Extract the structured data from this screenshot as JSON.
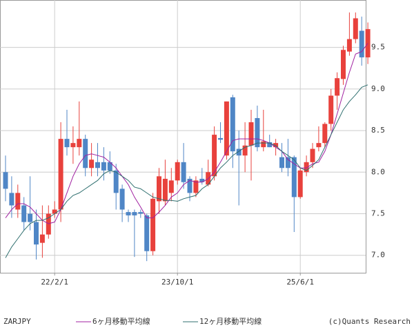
{
  "chart_data": {
    "type": "candlestick",
    "symbol": "ZARJPY",
    "credit": "(c)Quants Research",
    "categories": [
      null,
      null,
      null,
      null,
      null,
      null,
      null,
      null,
      "22/2/1",
      null,
      null,
      null,
      null,
      null,
      null,
      null,
      null,
      null,
      null,
      null,
      null,
      null,
      null,
      null,
      null,
      null,
      null,
      null,
      "23/10/1",
      null,
      null,
      null,
      null,
      null,
      null,
      null,
      null,
      null,
      null,
      null,
      null,
      null,
      null,
      null,
      null,
      null,
      null,
      null,
      "25/6/1",
      null,
      null,
      null,
      null,
      null,
      null,
      null,
      null,
      null,
      null,
      null
    ],
    "open": [
      8.0,
      7.75,
      7.55,
      7.6,
      7.5,
      7.4,
      7.15,
      7.25,
      7.5,
      7.55,
      8.4,
      8.3,
      8.3,
      8.4,
      8.05,
      8.12,
      8.12,
      8.12,
      8.02,
      7.8,
      7.52,
      7.52,
      7.52,
      7.48,
      7.05,
      7.65,
      7.65,
      7.75,
      7.9,
      8.12,
      7.92,
      7.75,
      7.92,
      7.85,
      7.95,
      8.41,
      8.2,
      8.9,
      8.28,
      8.2,
      8.32,
      8.65,
      8.3,
      8.36,
      8.3,
      8.18,
      8.18,
      8.18,
      7.7,
      8.0,
      8.12,
      8.3,
      8.35,
      8.58,
      8.92,
      9.12,
      9.45,
      9.6,
      9.7,
      9.38
    ],
    "high": [
      8.2,
      7.95,
      7.85,
      7.7,
      7.95,
      7.55,
      7.6,
      7.6,
      7.65,
      8.6,
      8.75,
      8.55,
      8.85,
      8.45,
      8.35,
      8.35,
      8.3,
      8.25,
      8.1,
      7.85,
      7.55,
      7.55,
      7.55,
      7.5,
      7.75,
      8.05,
      8.15,
      8.05,
      8.15,
      8.35,
      7.95,
      7.95,
      8.05,
      8.15,
      8.55,
      8.6,
      8.85,
      8.93,
      8.5,
      8.6,
      8.75,
      8.8,
      8.75,
      8.45,
      8.4,
      8.35,
      8.4,
      8.2,
      8.05,
      8.2,
      8.35,
      8.55,
      8.6,
      9.0,
      9.2,
      9.52,
      9.92,
      9.92,
      9.87,
      9.8
    ],
    "low": [
      7.65,
      7.45,
      7.45,
      7.3,
      7.3,
      6.95,
      6.97,
      7.2,
      7.45,
      7.4,
      8.2,
      8.1,
      8.2,
      7.95,
      7.95,
      7.95,
      7.9,
      7.98,
      7.55,
      7.4,
      7.4,
      6.98,
      7.45,
      6.93,
      7.0,
      7.5,
      7.6,
      7.65,
      7.85,
      7.8,
      7.65,
      7.7,
      7.85,
      7.83,
      7.9,
      8.35,
      8.15,
      8.05,
      7.6,
      8.0,
      7.9,
      8.25,
      8.25,
      8.3,
      8.2,
      8.0,
      7.95,
      7.28,
      7.68,
      7.95,
      8.05,
      8.25,
      8.3,
      8.5,
      8.75,
      9.05,
      9.4,
      9.55,
      9.28,
      9.3
    ],
    "close": [
      7.8,
      7.6,
      7.75,
      7.4,
      7.4,
      7.13,
      7.25,
      7.5,
      7.55,
      8.4,
      8.3,
      8.35,
      8.4,
      8.05,
      8.15,
      8.05,
      8.02,
      8.02,
      7.75,
      7.55,
      7.48,
      7.48,
      7.5,
      7.05,
      7.68,
      7.95,
      7.92,
      7.9,
      8.12,
      7.88,
      7.75,
      7.9,
      7.88,
      8.0,
      8.45,
      8.39,
      8.85,
      8.25,
      8.2,
      8.32,
      8.6,
      8.3,
      8.37,
      8.3,
      8.35,
      8.05,
      8.05,
      7.7,
      8.02,
      8.12,
      8.28,
      8.35,
      8.58,
      8.92,
      9.13,
      9.47,
      9.6,
      9.85,
      9.38,
      9.72
    ],
    "up_color": "#e8413c",
    "down_color": "#4f86c6",
    "series": [
      {
        "name": "6ヶ月移動平均線",
        "color": "#a020a0",
        "values": [
          7.45,
          7.55,
          7.62,
          7.62,
          7.58,
          7.5,
          7.42,
          7.38,
          7.4,
          7.55,
          7.75,
          7.95,
          8.1,
          8.2,
          8.22,
          8.2,
          8.18,
          8.12,
          8.05,
          7.95,
          7.85,
          7.7,
          7.58,
          7.45,
          7.45,
          7.52,
          7.6,
          7.7,
          7.75,
          7.85,
          7.9,
          7.88,
          7.88,
          7.92,
          8.0,
          8.12,
          8.25,
          8.38,
          8.4,
          8.4,
          8.4,
          8.4,
          8.38,
          8.35,
          8.3,
          8.25,
          8.15,
          8.1,
          8.05,
          8.05,
          8.1,
          8.12,
          8.25,
          8.45,
          8.7,
          8.95,
          9.2,
          9.42,
          9.45,
          9.55
        ]
      },
      {
        "name": "12ヶ月移動平均線",
        "color": "#2f6f6f",
        "values": [
          6.97,
          7.1,
          7.2,
          7.3,
          7.38,
          7.42,
          7.42,
          7.45,
          7.5,
          7.55,
          7.65,
          7.72,
          7.75,
          7.8,
          7.85,
          7.9,
          7.98,
          8.02,
          8.0,
          7.95,
          7.9,
          7.82,
          7.8,
          7.75,
          7.7,
          7.68,
          7.66,
          7.66,
          7.65,
          7.68,
          7.7,
          7.72,
          7.8,
          7.85,
          7.95,
          8.05,
          8.12,
          8.2,
          8.25,
          8.3,
          8.32,
          8.35,
          8.35,
          8.35,
          8.32,
          8.25,
          8.2,
          8.15,
          8.05,
          8.02,
          8.08,
          8.15,
          8.3,
          8.45,
          8.6,
          8.75,
          8.85,
          8.93,
          9.02,
          9.05
        ]
      }
    ],
    "ylim": [
      6.79,
      10.07
    ],
    "yticks": [
      {
        "value": 7,
        "label": "7.0"
      },
      7.5,
      {
        "value": 8,
        "label": "8.0"
      },
      8.5,
      {
        "value": 9,
        "label": "9.0"
      },
      9.5
    ],
    "grid": true
  }
}
